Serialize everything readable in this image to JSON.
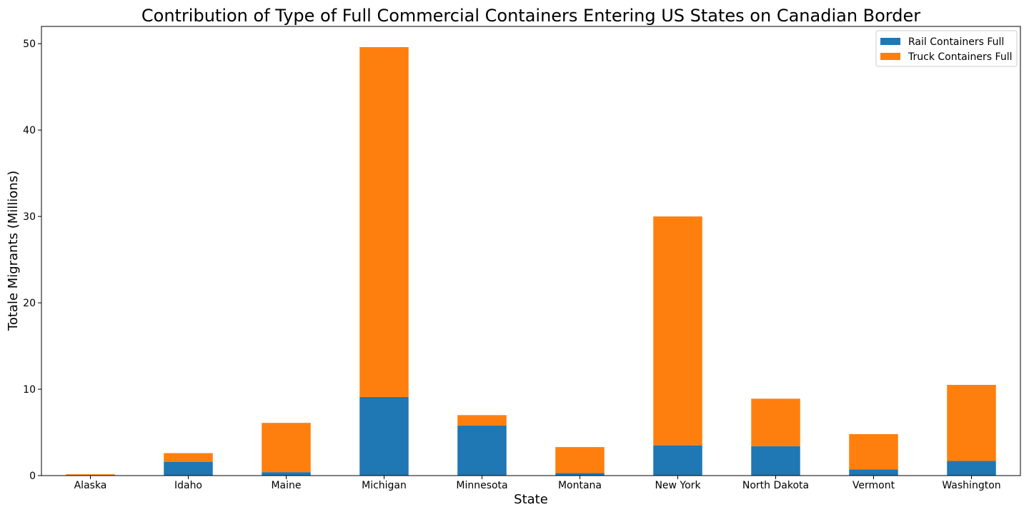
{
  "chart_data": {
    "type": "bar",
    "stacked": true,
    "title": "Contribution of Type of Full Commercial Containers Entering US States on Canadian Border",
    "xlabel": "State",
    "ylabel": "Totale Migrants (Millions)",
    "categories": [
      "Alaska",
      "Idaho",
      "Maine",
      "Michigan",
      "Minnesota",
      "Montana",
      "New York",
      "North Dakota",
      "Vermont",
      "Washington"
    ],
    "series": [
      {
        "name": "Rail Containers Full",
        "color": "#1f77b4",
        "values": [
          0.02,
          1.6,
          0.4,
          9.1,
          5.8,
          0.3,
          3.5,
          3.4,
          0.7,
          1.7
        ]
      },
      {
        "name": "Truck Containers Full",
        "color": "#ff7f0e",
        "values": [
          0.13,
          1.0,
          5.7,
          40.5,
          1.2,
          3.0,
          26.5,
          5.5,
          4.1,
          8.8
        ]
      }
    ],
    "ylim": [
      0,
      52
    ],
    "yticks": [
      0,
      10,
      20,
      30,
      40,
      50
    ],
    "grid": false,
    "legend_position": "top-right"
  }
}
